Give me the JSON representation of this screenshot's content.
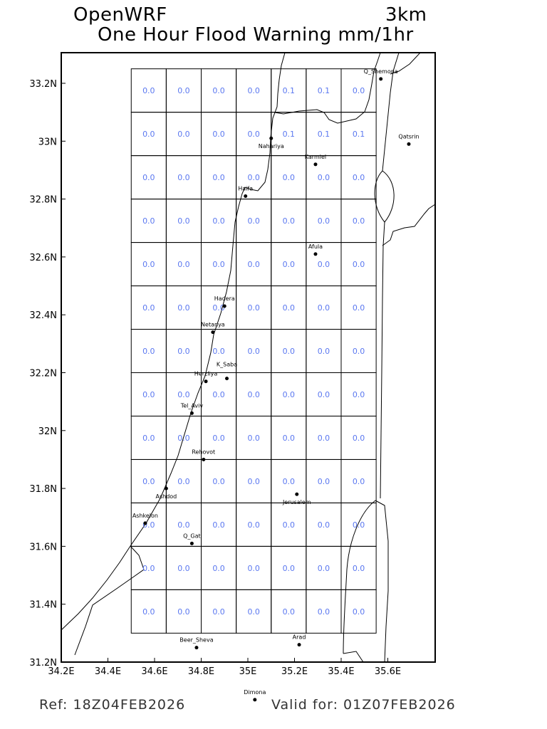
{
  "header": {
    "model": "OpenWRF",
    "resolution": "3km",
    "title": "One Hour Flood Warning mm/1hr"
  },
  "footer": {
    "ref": "Ref: 18Z04FEB2026",
    "valid": "Valid for: 01Z07FEB2026"
  },
  "chart_data": {
    "type": "heatmap",
    "title": "One Hour Flood Warning mm/1hr",
    "units": "mm/1hr",
    "xlim": [
      34.2,
      35.8
    ],
    "ylim": [
      31.2,
      33.3
    ],
    "x_ticks": [
      "34.2E",
      "34.4E",
      "34.6E",
      "34.8E",
      "35E",
      "35.2E",
      "35.4E",
      "35.6E"
    ],
    "x_tick_values": [
      34.2,
      34.4,
      34.6,
      34.8,
      35.0,
      35.2,
      35.4,
      35.6
    ],
    "y_ticks": [
      "31.2N",
      "31.4N",
      "31.6N",
      "31.8N",
      "32N",
      "32.2N",
      "32.4N",
      "32.6N",
      "32.8N",
      "33N",
      "33.2N"
    ],
    "y_tick_values": [
      31.2,
      31.4,
      31.6,
      31.8,
      32.0,
      32.2,
      32.4,
      32.6,
      32.8,
      33.0,
      33.2
    ],
    "grid_lon_edges": [
      34.5,
      34.65,
      34.8,
      34.95,
      35.1,
      35.25,
      35.4,
      35.55
    ],
    "grid_lat_edges_top_down": [
      33.25,
      33.1,
      32.95,
      32.8,
      32.65,
      32.5,
      32.35,
      32.2,
      32.05,
      31.9,
      31.75,
      31.6,
      31.45,
      31.3
    ],
    "value_color": "#5b78f0",
    "values": [
      [
        "0.0",
        "0.0",
        "0.0",
        "0.0",
        "0.1",
        "0.1",
        "0.0"
      ],
      [
        "0.0",
        "0.0",
        "0.0",
        "0.0",
        "0.1",
        "0.1",
        "0.1"
      ],
      [
        "0.0",
        "0.0",
        "0.0",
        "0.0",
        "0.0",
        "0.0",
        "0.0"
      ],
      [
        "0.0",
        "0.0",
        "0.0",
        "0.0",
        "0.0",
        "0.0",
        "0.0"
      ],
      [
        "0.0",
        "0.0",
        "0.0",
        "0.0",
        "0.0",
        "0.0",
        "0.0"
      ],
      [
        "0.0",
        "0.0",
        "0.0",
        "0.0",
        "0.0",
        "0.0",
        "0.0"
      ],
      [
        "0.0",
        "0.0",
        "0.0",
        "0.0",
        "0.0",
        "0.0",
        "0.0"
      ],
      [
        "0.0",
        "0.0",
        "0.0",
        "0.0",
        "0.0",
        "0.0",
        "0.0"
      ],
      [
        "0.0",
        "0.0",
        "0.0",
        "0.0",
        "0.0",
        "0.0",
        "0.0"
      ],
      [
        "0.0",
        "0.0",
        "0.0",
        "0.0",
        "0.0",
        "0.0",
        "0.0"
      ],
      [
        "0.0",
        "0.0",
        "0.0",
        "0.0",
        "0.0",
        "0.0",
        "0.0"
      ],
      [
        "0.0",
        "0.0",
        "0.0",
        "0.0",
        "0.0",
        "0.0",
        "0.0"
      ],
      [
        "0.0",
        "0.0",
        "0.0",
        "0.0",
        "0.0",
        "0.0",
        "0.0"
      ]
    ],
    "cities": [
      {
        "name": "Q_Shemona",
        "lon": 35.57,
        "lat": 33.215
      },
      {
        "name": "Qatsrin",
        "lon": 35.69,
        "lat": 32.99
      },
      {
        "name": "Nahariya",
        "lon": 35.1,
        "lat": 33.01
      },
      {
        "name": "Karmiel",
        "lon": 35.29,
        "lat": 32.92
      },
      {
        "name": "Haifa",
        "lon": 34.99,
        "lat": 32.81
      },
      {
        "name": "Afula",
        "lon": 35.29,
        "lat": 32.61
      },
      {
        "name": "Hadera",
        "lon": 34.9,
        "lat": 32.43
      },
      {
        "name": "Netanya",
        "lon": 34.85,
        "lat": 32.34
      },
      {
        "name": "Herzliya",
        "lon": 34.82,
        "lat": 32.17
      },
      {
        "name": "K_Saba",
        "lon": 34.91,
        "lat": 32.18
      },
      {
        "name": "Tel_Aviv",
        "lon": 34.76,
        "lat": 32.06
      },
      {
        "name": "Rehovot",
        "lon": 34.81,
        "lat": 31.9
      },
      {
        "name": "Ashdod",
        "lon": 34.65,
        "lat": 31.8
      },
      {
        "name": "Jerusalem",
        "lon": 35.21,
        "lat": 31.78
      },
      {
        "name": "Ashkelon",
        "lon": 34.56,
        "lat": 31.68
      },
      {
        "name": "Q_Gat",
        "lon": 34.76,
        "lat": 31.61
      },
      {
        "name": "Beer_Sheva",
        "lon": 34.78,
        "lat": 31.25
      },
      {
        "name": "Arad",
        "lon": 35.22,
        "lat": 31.26
      },
      {
        "name": "Dimona",
        "lon": 35.03,
        "lat": 31.07
      }
    ]
  }
}
